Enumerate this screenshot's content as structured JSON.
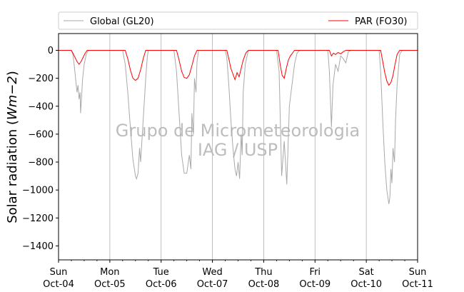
{
  "chart_data": {
    "type": "line",
    "title": "",
    "xlabel": "",
    "ylabel_prefix": "Solar radiation (",
    "ylabel_unit": "Wm−2",
    "ylabel_suffix": ")",
    "ylim": [
      -1500,
      120
    ],
    "yticks": [
      0,
      -200,
      -400,
      -600,
      -800,
      -1000,
      -1200,
      -1400
    ],
    "ytick_labels": [
      "0",
      "−200",
      "−400",
      "−600",
      "−800",
      "−1000",
      "−1200",
      "−1400"
    ],
    "xlim": [
      "2015-10-04",
      "2015-10-11"
    ],
    "xticks": [
      {
        "day": "Sun",
        "date": "Oct-04"
      },
      {
        "day": "Mon",
        "date": "Oct-05"
      },
      {
        "day": "Tue",
        "date": "Oct-06"
      },
      {
        "day": "Wed",
        "date": "Oct-07"
      },
      {
        "day": "Thu",
        "date": "Oct-08"
      },
      {
        "day": "Fri",
        "date": "Oct-09"
      },
      {
        "day": "Sat",
        "date": "Oct-10"
      },
      {
        "day": "Sun",
        "date": "Oct-11"
      }
    ],
    "grid": "vertical",
    "legend_placement": "top",
    "watermark": [
      "Grupo de Micrometeorologia",
      "IAG / USP"
    ],
    "series": [
      {
        "name": "Global (GL20)",
        "color": "#a9a9a9",
        "points": [
          [
            0,
            0
          ],
          [
            0.25,
            0
          ],
          [
            0.28,
            -30
          ],
          [
            0.31,
            -120
          ],
          [
            0.34,
            -230
          ],
          [
            0.36,
            -300
          ],
          [
            0.38,
            -250
          ],
          [
            0.4,
            -350
          ],
          [
            0.42,
            -300
          ],
          [
            0.43,
            -450
          ],
          [
            0.45,
            -330
          ],
          [
            0.47,
            -200
          ],
          [
            0.5,
            -100
          ],
          [
            0.54,
            -30
          ],
          [
            0.58,
            0
          ],
          [
            1,
            0
          ],
          [
            1.25,
            0
          ],
          [
            1.3,
            -100
          ],
          [
            1.35,
            -300
          ],
          [
            1.4,
            -550
          ],
          [
            1.45,
            -780
          ],
          [
            1.5,
            -900
          ],
          [
            1.52,
            -920
          ],
          [
            1.55,
            -880
          ],
          [
            1.58,
            -700
          ],
          [
            1.6,
            -800
          ],
          [
            1.65,
            -500
          ],
          [
            1.7,
            -200
          ],
          [
            1.73,
            -50
          ],
          [
            1.75,
            0
          ],
          [
            2,
            0
          ],
          [
            2.25,
            0
          ],
          [
            2.3,
            -150
          ],
          [
            2.35,
            -450
          ],
          [
            2.4,
            -750
          ],
          [
            2.45,
            -880
          ],
          [
            2.5,
            -880
          ],
          [
            2.55,
            -750
          ],
          [
            2.58,
            -850
          ],
          [
            2.6,
            -450
          ],
          [
            2.63,
            -600
          ],
          [
            2.65,
            -200
          ],
          [
            2.68,
            -300
          ],
          [
            2.7,
            -80
          ],
          [
            2.73,
            0
          ],
          [
            3,
            0
          ],
          [
            3.25,
            0
          ],
          [
            3.28,
            -50
          ],
          [
            3.32,
            -250
          ],
          [
            3.36,
            -500
          ],
          [
            3.4,
            -700
          ],
          [
            3.44,
            -850
          ],
          [
            3.47,
            -900
          ],
          [
            3.5,
            -800
          ],
          [
            3.53,
            -920
          ],
          [
            3.56,
            -600
          ],
          [
            3.58,
            -750
          ],
          [
            3.6,
            -300
          ],
          [
            3.64,
            -100
          ],
          [
            3.7,
            0
          ],
          [
            4,
            0
          ],
          [
            4.25,
            0
          ],
          [
            4.3,
            -150
          ],
          [
            4.35,
            -900
          ],
          [
            4.4,
            -650
          ],
          [
            4.45,
            -960
          ],
          [
            4.5,
            -400
          ],
          [
            4.55,
            -250
          ],
          [
            4.6,
            -100
          ],
          [
            4.65,
            -20
          ],
          [
            4.7,
            0
          ],
          [
            5,
            0
          ],
          [
            5.25,
            0
          ],
          [
            5.28,
            -150
          ],
          [
            5.32,
            -550
          ],
          [
            5.35,
            -250
          ],
          [
            5.4,
            -100
          ],
          [
            5.45,
            -150
          ],
          [
            5.5,
            -40
          ],
          [
            5.55,
            -60
          ],
          [
            5.6,
            -90
          ],
          [
            5.65,
            -10
          ],
          [
            5.7,
            0
          ],
          [
            6,
            0
          ],
          [
            6.25,
            0
          ],
          [
            6.28,
            -150
          ],
          [
            6.32,
            -500
          ],
          [
            6.36,
            -800
          ],
          [
            6.4,
            -1000
          ],
          [
            6.44,
            -1100
          ],
          [
            6.46,
            -1050
          ],
          [
            6.48,
            -850
          ],
          [
            6.5,
            -950
          ],
          [
            6.52,
            -700
          ],
          [
            6.55,
            -800
          ],
          [
            6.57,
            -500
          ],
          [
            6.6,
            -250
          ],
          [
            6.65,
            -30
          ],
          [
            6.7,
            0
          ],
          [
            7,
            0
          ]
        ]
      },
      {
        "name": "PAR (FO30)",
        "color": "#ff0000",
        "points": [
          [
            0,
            0
          ],
          [
            0.25,
            0
          ],
          [
            0.28,
            -20
          ],
          [
            0.32,
            -50
          ],
          [
            0.36,
            -80
          ],
          [
            0.4,
            -100
          ],
          [
            0.44,
            -80
          ],
          [
            0.48,
            -50
          ],
          [
            0.52,
            -20
          ],
          [
            0.56,
            0
          ],
          [
            1,
            0
          ],
          [
            1.3,
            0
          ],
          [
            1.35,
            -60
          ],
          [
            1.4,
            -140
          ],
          [
            1.45,
            -200
          ],
          [
            1.5,
            -215
          ],
          [
            1.55,
            -200
          ],
          [
            1.6,
            -140
          ],
          [
            1.65,
            -60
          ],
          [
            1.7,
            0
          ],
          [
            2,
            0
          ],
          [
            2.3,
            0
          ],
          [
            2.35,
            -70
          ],
          [
            2.4,
            -150
          ],
          [
            2.45,
            -195
          ],
          [
            2.5,
            -200
          ],
          [
            2.55,
            -175
          ],
          [
            2.6,
            -110
          ],
          [
            2.65,
            -40
          ],
          [
            2.7,
            0
          ],
          [
            3,
            0
          ],
          [
            3.28,
            0
          ],
          [
            3.32,
            -60
          ],
          [
            3.36,
            -130
          ],
          [
            3.4,
            -170
          ],
          [
            3.44,
            -210
          ],
          [
            3.48,
            -160
          ],
          [
            3.52,
            -190
          ],
          [
            3.56,
            -130
          ],
          [
            3.6,
            -70
          ],
          [
            3.65,
            -20
          ],
          [
            3.7,
            0
          ],
          [
            4,
            0
          ],
          [
            4.28,
            0
          ],
          [
            4.32,
            -100
          ],
          [
            4.36,
            -180
          ],
          [
            4.4,
            -200
          ],
          [
            4.44,
            -130
          ],
          [
            4.48,
            -70
          ],
          [
            4.52,
            -40
          ],
          [
            4.56,
            -20
          ],
          [
            4.6,
            0
          ],
          [
            5,
            0
          ],
          [
            5.28,
            0
          ],
          [
            5.32,
            -40
          ],
          [
            5.36,
            -20
          ],
          [
            5.4,
            -30
          ],
          [
            5.45,
            -15
          ],
          [
            5.5,
            -25
          ],
          [
            5.55,
            -10
          ],
          [
            5.6,
            0
          ],
          [
            6,
            0
          ],
          [
            6.28,
            0
          ],
          [
            6.32,
            -80
          ],
          [
            6.36,
            -160
          ],
          [
            6.4,
            -220
          ],
          [
            6.44,
            -250
          ],
          [
            6.48,
            -230
          ],
          [
            6.52,
            -180
          ],
          [
            6.56,
            -100
          ],
          [
            6.6,
            -30
          ],
          [
            6.65,
            0
          ],
          [
            7,
            0
          ]
        ]
      }
    ]
  }
}
